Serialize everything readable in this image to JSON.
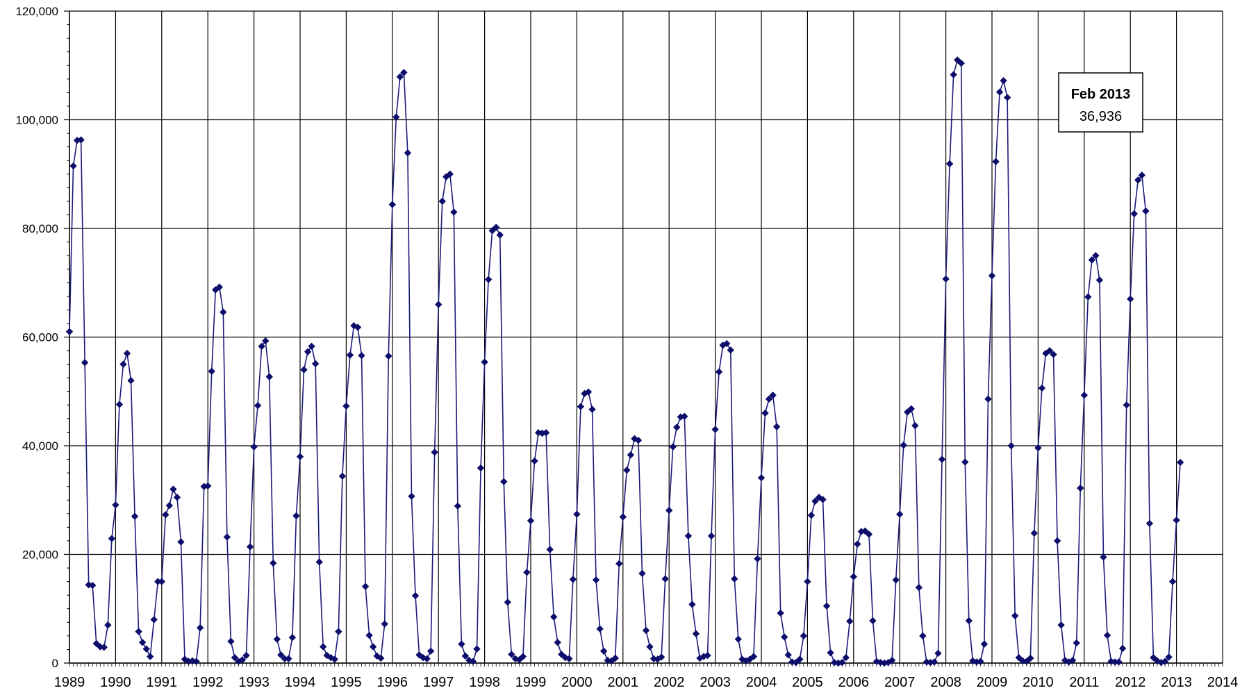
{
  "chart_data": {
    "type": "line",
    "title": "",
    "xlabel": "",
    "ylabel": "",
    "x_tick_labels": [
      "1989",
      "1990",
      "1991",
      "1992",
      "1993",
      "1994",
      "1995",
      "1996",
      "1997",
      "1998",
      "1999",
      "2000",
      "2001",
      "2002",
      "2003",
      "2004",
      "2005",
      "2006",
      "2007",
      "2008",
      "2009",
      "2010",
      "2011",
      "2012",
      "2013",
      "2014"
    ],
    "y_tick_labels": [
      "0",
      "20,000",
      "40,000",
      "60,000",
      "80,000",
      "100,000",
      "120,000"
    ],
    "xlim": [
      "1989-01",
      "2014-01"
    ],
    "ylim": [
      0,
      120000
    ],
    "grid": true,
    "legend": "none",
    "colors": {
      "line": "#1a1a7a",
      "marker": "#0d0d6b",
      "grid": "#000000"
    },
    "annotation": {
      "title": "Feb 2013",
      "value": "36,936"
    },
    "series": [
      {
        "x_start": "1989-01",
        "frequency": "monthly",
        "values": [
          61000,
          91500,
          96200,
          96300,
          55300,
          14400,
          14300,
          3600,
          3000,
          2900,
          7000,
          22900,
          29100,
          47600,
          55000,
          57000,
          52000,
          27000,
          5800,
          3800,
          2600,
          1200,
          8000,
          15000,
          15000,
          27300,
          29000,
          32000,
          30500,
          22300,
          700,
          300,
          400,
          300,
          6500,
          32500,
          32600,
          53700,
          68700,
          69200,
          64600,
          23200,
          4000,
          1000,
          300,
          600,
          1400,
          21400,
          39800,
          47400,
          58300,
          59300,
          52700,
          18400,
          4400,
          1500,
          800,
          800,
          4700,
          27100,
          38000,
          54000,
          57300,
          58300,
          55100,
          18600,
          3000,
          1400,
          1000,
          700,
          5800,
          34400,
          47300,
          56700,
          62100,
          61800,
          56600,
          14100,
          5100,
          3000,
          1300,
          900,
          7200,
          56500,
          84400,
          100500,
          107900,
          108700,
          93900,
          30700,
          12400,
          1500,
          1000,
          800,
          2200,
          38800,
          66000,
          85000,
          89500,
          90000,
          83000,
          28900,
          3500,
          1300,
          500,
          300,
          2600,
          35900,
          55400,
          70600,
          79600,
          80200,
          78800,
          33400,
          11200,
          1600,
          800,
          600,
          1200,
          16700,
          26200,
          37200,
          42400,
          42300,
          42400,
          20900,
          8500,
          3800,
          1600,
          1000,
          800,
          15400,
          27400,
          47200,
          49600,
          49900,
          46700,
          15300,
          6300,
          2200,
          500,
          400,
          900,
          18300,
          26900,
          35500,
          38300,
          41300,
          41000,
          16500,
          6000,
          3000,
          800,
          700,
          1100,
          15500,
          28100,
          39800,
          43400,
          45300,
          45400,
          23400,
          10800,
          5400,
          900,
          1200,
          1400,
          23400,
          43000,
          53600,
          58500,
          58800,
          57600,
          15500,
          4400,
          700,
          400,
          700,
          1200,
          19200,
          34100,
          46000,
          48600,
          49300,
          43500,
          9200,
          4800,
          1500,
          200,
          100,
          700,
          5000,
          15000,
          27200,
          29800,
          30500,
          30100,
          10500,
          1900,
          100,
          0,
          100,
          1000,
          7700,
          15900,
          21900,
          24200,
          24300,
          23700,
          7800,
          300,
          100,
          0,
          100,
          500,
          15300,
          27400,
          40100,
          46200,
          46800,
          43700,
          13900,
          5000,
          200,
          100,
          200,
          1800,
          37500,
          70700,
          91900,
          108300,
          111000,
          110400,
          37000,
          7800,
          400,
          200,
          300,
          3500,
          48600,
          71300,
          92300,
          105100,
          107200,
          104100,
          40000,
          8700,
          1000,
          400,
          300,
          900,
          23900,
          39600,
          50600,
          57000,
          57500,
          56800,
          22500,
          7000,
          500,
          200,
          500,
          3700,
          32200,
          49300,
          67400,
          74200,
          75000,
          70500,
          19500,
          5100,
          300,
          200,
          200,
          2700,
          47500,
          67000,
          82700,
          88900,
          89800,
          83200,
          25700,
          1000,
          400,
          100,
          300,
          1100,
          15000,
          26300,
          36936
        ]
      }
    ]
  }
}
